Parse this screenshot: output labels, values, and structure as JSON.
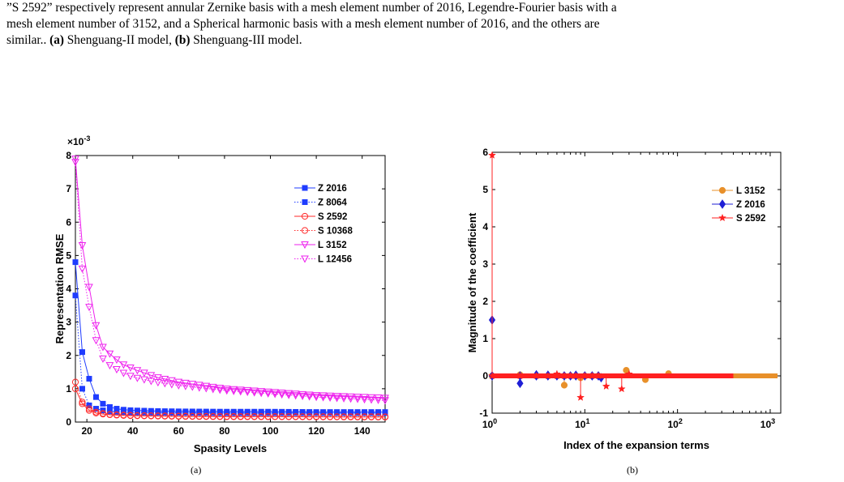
{
  "caption": {
    "line1": "”S 2592” respectively represent annular Zernike basis with a mesh element number of 2016, Legendre-Fourier basis with a",
    "line2": "mesh element number of 3152, and a Spherical harmonic basis with a mesh element number of 2016, and the others are",
    "line3_pre": "similar.. ",
    "a_tag": "(a)",
    "a_text": " Shenguang-II model, ",
    "b_tag": "(b)",
    "b_text": " Shenguang-III model."
  },
  "sublabels": {
    "a": "(a)",
    "b": "(b)"
  },
  "chart_data": [
    {
      "type": "line",
      "xlabel": "Spasity Levels",
      "ylabel": "Representation RMSE",
      "y_multiplier": "×10",
      "y_exponent": "-3",
      "xlim": [
        15,
        150
      ],
      "ylim": [
        0,
        8
      ],
      "xticks": [
        20,
        40,
        60,
        80,
        100,
        120,
        140
      ],
      "yticks": [
        0,
        1,
        2,
        3,
        4,
        5,
        6,
        7,
        8
      ],
      "legend_position": "top-right",
      "series": [
        {
          "name": "Z 2016",
          "color": "#1f3cff",
          "marker": "square",
          "dash": "solid",
          "filled": true,
          "x": [
            15,
            18,
            21,
            24,
            27,
            30,
            33,
            36,
            40,
            50,
            60,
            80,
            100,
            120,
            150
          ],
          "y": [
            4.8,
            2.1,
            1.3,
            0.75,
            0.55,
            0.45,
            0.4,
            0.37,
            0.35,
            0.33,
            0.32,
            0.31,
            0.31,
            0.3,
            0.3
          ]
        },
        {
          "name": "Z 8064",
          "color": "#1f3cff",
          "marker": "square",
          "dash": "dotted",
          "filled": true,
          "x": [
            15,
            16,
            18,
            21,
            24,
            27,
            30,
            35,
            40,
            60,
            80,
            100,
            150
          ],
          "y": [
            3.8,
            2.05,
            1.0,
            0.5,
            0.4,
            0.35,
            0.32,
            0.3,
            0.29,
            0.28,
            0.27,
            0.27,
            0.27
          ]
        },
        {
          "name": "S 2592",
          "color": "#ff2a2a",
          "marker": "circle",
          "dash": "solid",
          "filled": false,
          "x": [
            15,
            18,
            21,
            24,
            27,
            30,
            35,
            40,
            60,
            80,
            100,
            150
          ],
          "y": [
            1.0,
            0.55,
            0.35,
            0.27,
            0.24,
            0.22,
            0.2,
            0.19,
            0.17,
            0.16,
            0.16,
            0.15
          ]
        },
        {
          "name": "S 10368",
          "color": "#ff2a2a",
          "marker": "circle",
          "dash": "dotted",
          "filled": false,
          "x": [
            15,
            16,
            18,
            21,
            24,
            27,
            30,
            40,
            60,
            80,
            150
          ],
          "y": [
            1.2,
            0.95,
            0.6,
            0.4,
            0.3,
            0.26,
            0.23,
            0.2,
            0.18,
            0.17,
            0.16
          ]
        },
        {
          "name": "L 3152",
          "color": "#ee22ee",
          "marker": "triangle-down",
          "dash": "solid",
          "filled": false,
          "x": [
            15,
            16,
            18,
            21,
            24,
            27,
            30,
            35,
            40,
            50,
            60,
            80,
            100,
            120,
            150
          ],
          "y": [
            7.9,
            7.5,
            5.3,
            4.05,
            2.9,
            2.25,
            2.05,
            1.75,
            1.6,
            1.35,
            1.2,
            1.0,
            0.9,
            0.8,
            0.72
          ]
        },
        {
          "name": "L 12456",
          "color": "#ee22ee",
          "marker": "triangle-down",
          "dash": "dotted",
          "filled": false,
          "x": [
            15,
            16,
            18,
            21,
            24,
            27,
            30,
            35,
            40,
            50,
            60,
            80,
            100,
            120,
            150
          ],
          "y": [
            7.8,
            6.6,
            4.6,
            3.45,
            2.45,
            1.9,
            1.7,
            1.5,
            1.35,
            1.2,
            1.1,
            0.95,
            0.85,
            0.75,
            0.65
          ]
        }
      ]
    },
    {
      "type": "stem",
      "xlabel": "Index of the expansion terms",
      "ylabel": "Magnitude of the coefficient",
      "x_scale": "log",
      "xlim": [
        1,
        1300
      ],
      "ylim": [
        -1,
        6
      ],
      "xticks": [
        1,
        10,
        100,
        1000
      ],
      "xtick_labels": [
        {
          "base": "10",
          "exp": "0"
        },
        {
          "base": "10",
          "exp": "1"
        },
        {
          "base": "10",
          "exp": "2"
        },
        {
          "base": "10",
          "exp": "3"
        }
      ],
      "yticks": [
        -1,
        0,
        1,
        2,
        3,
        4,
        5,
        6
      ],
      "legend_position": "top-right",
      "series": [
        {
          "name": "L 3152",
          "color": "#e8902a",
          "marker": "circle",
          "n": 1200,
          "points": [
            [
              1,
              0.0
            ],
            [
              2,
              0.03
            ],
            [
              6,
              -0.25
            ],
            [
              9,
              -0.05
            ],
            [
              28,
              0.15
            ],
            [
              45,
              -0.1
            ],
            [
              80,
              0.06
            ]
          ]
        },
        {
          "name": "Z 2016",
          "color": "#1f1fd6",
          "marker": "diamond",
          "n": 380,
          "points": [
            [
              1,
              1.5
            ],
            [
              2,
              -0.2
            ],
            [
              3,
              0.03
            ],
            [
              4,
              0.02
            ],
            [
              8,
              0.02
            ],
            [
              15,
              -0.05
            ]
          ]
        },
        {
          "name": "S 2592",
          "color": "#ff2020",
          "marker": "star",
          "n": 400,
          "points": [
            [
              1,
              5.92
            ],
            [
              5,
              0.05
            ],
            [
              9,
              -0.58
            ],
            [
              17,
              -0.28
            ],
            [
              25,
              -0.35
            ],
            [
              30,
              0.05
            ]
          ]
        }
      ]
    }
  ]
}
